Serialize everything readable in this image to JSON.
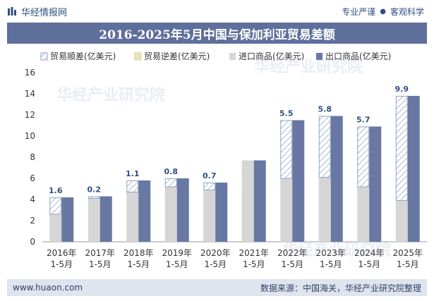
{
  "header": {
    "brand": "华经情报网",
    "slogan_left": "专业严谨",
    "slogan_sep": "●",
    "slogan_right": "客观科学"
  },
  "footer": {
    "website": "www.huaon.com",
    "source": "数据来源：中国海关，华经产业研究院整理"
  },
  "watermarks": [
    "华经产业研究院",
    "华经产业研究院",
    "华经产业研究院"
  ],
  "colors": {
    "title_bg": "#5f6f9c",
    "import": "#d6d6d6",
    "export": "#6878a3",
    "hatch": "#9fb2cf",
    "surplus_border": "#8fa3c4",
    "deficit": "#e8e4b8"
  },
  "chart_data": {
    "type": "bar",
    "title": "2016-2025年5月中国与保加利亚贸易差额",
    "categories": [
      [
        "2016年",
        "1-5月"
      ],
      [
        "2017年",
        "1-5月"
      ],
      [
        "2018年",
        "1-5月"
      ],
      [
        "2019年",
        "1-5月"
      ],
      [
        "2020年",
        "1-5月"
      ],
      [
        "2021年",
        "1-5月"
      ],
      [
        "2022年",
        "1-5月"
      ],
      [
        "2023年",
        "1-5月"
      ],
      [
        "2024年",
        "1-5月"
      ],
      [
        "2025年",
        "1-5月"
      ]
    ],
    "legend": [
      "贸易顺差(亿美元)",
      "贸易逆差(亿美元)",
      "进口商品(亿美元)",
      "出口商品(亿美元)"
    ],
    "series": [
      {
        "name": "进口商品(亿美元)",
        "values": [
          2.6,
          4.1,
          4.7,
          5.2,
          4.9,
          7.7,
          6.0,
          6.1,
          5.2,
          3.9
        ]
      },
      {
        "name": "出口商品(亿美元)",
        "values": [
          4.2,
          4.3,
          5.8,
          6.0,
          5.6,
          7.7,
          11.5,
          11.9,
          10.9,
          13.8
        ]
      }
    ],
    "trade_balance_labels": [
      "1.6",
      "0.2",
      "1.1",
      "0.8",
      "0.7",
      "",
      "5.5",
      "5.8",
      "5.7",
      "9.9"
    ],
    "ylim": [
      0,
      16
    ],
    "yticks": [
      "0",
      "2",
      "4",
      "6",
      "8",
      "10",
      "12",
      "14",
      "16"
    ],
    "xlabel": "",
    "ylabel": ""
  }
}
